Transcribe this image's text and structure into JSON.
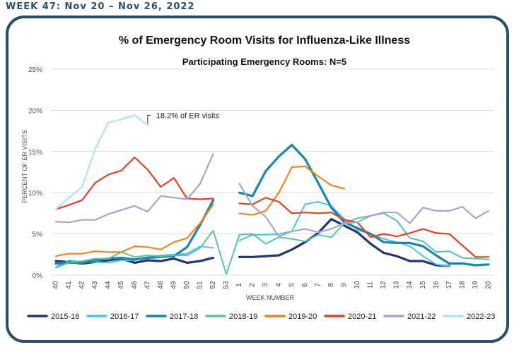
{
  "header": {
    "week_label": "WEEK 47: Nov 20 – Nov 26, 2022"
  },
  "chart_data": {
    "type": "line",
    "title": "% of Emergency Room Visits for Influenza-Like Illness",
    "subtitle": "Participating Emergency Rooms: N=5",
    "xlabel": "WEEK NUMBER",
    "ylabel": "PERCENT OF ER VISITS",
    "ylim": [
      0,
      25
    ],
    "yticks": [
      "0%",
      "5%",
      "10%",
      "15%",
      "20%",
      "25%"
    ],
    "categories": [
      "40",
      "41",
      "42",
      "43",
      "44",
      "45",
      "46",
      "47",
      "48",
      "49",
      "50",
      "51",
      "52",
      "53",
      "1",
      "2",
      "3",
      "4",
      "5",
      "6",
      "7",
      "8",
      "9",
      "10",
      "11",
      "12",
      "13",
      "14",
      "15",
      "16",
      "17",
      "18",
      "19",
      "20"
    ],
    "grid": true,
    "legend": "bottom",
    "annotation": {
      "text": "18.2% of ER visits",
      "category": "47",
      "value": 18.2
    },
    "series": [
      {
        "name": "2015-16",
        "color": "#26346e",
        "width": 3.2,
        "values": [
          1.7,
          1.6,
          1.4,
          1.6,
          1.8,
          2.0,
          1.5,
          1.8,
          1.7,
          2.0,
          1.5,
          1.7,
          2.1,
          null,
          2.2,
          2.2,
          2.3,
          2.4,
          3.1,
          4.0,
          5.1,
          6.8,
          6.0,
          5.2,
          3.8,
          2.7,
          2.3,
          1.7,
          1.7,
          1.2,
          1.1,
          null,
          null,
          null
        ]
      },
      {
        "name": "2016-17",
        "color": "#4dc3e8",
        "width": 2,
        "values": [
          1.0,
          1.8,
          1.6,
          1.6,
          1.5,
          1.8,
          1.8,
          2.2,
          2.4,
          2.5,
          2.6,
          3.5,
          3.3,
          null,
          4.2,
          4.9,
          4.9,
          5.0,
          5.3,
          8.6,
          8.9,
          8.4,
          6.8,
          5.5,
          5.0,
          4.4,
          4.0,
          3.5,
          2.3,
          1.3,
          1.1,
          null,
          null,
          null
        ]
      },
      {
        "name": "2017-18",
        "color": "#1b86a8",
        "width": 3.2,
        "values": [
          1.4,
          1.5,
          1.5,
          1.8,
          2.0,
          2.1,
          1.9,
          2.1,
          2.2,
          2.3,
          3.4,
          6.1,
          9.1,
          null,
          10.0,
          9.6,
          12.6,
          14.4,
          15.8,
          14.1,
          11.2,
          8.2,
          6.4,
          5.7,
          5.0,
          4.0,
          3.9,
          3.9,
          3.5,
          2.4,
          1.4,
          1.4,
          1.2,
          1.3
        ]
      },
      {
        "name": "2018-19",
        "color": "#5bc3a2",
        "width": 2,
        "values": [
          0.9,
          1.5,
          1.7,
          2.0,
          2.0,
          2.8,
          2.2,
          2.4,
          2.3,
          2.4,
          2.4,
          3.3,
          5.4,
          0.1,
          4.9,
          5.0,
          3.8,
          4.6,
          4.4,
          4.1,
          4.9,
          4.6,
          6.3,
          6.9,
          7.2,
          7.5,
          6.6,
          4.5,
          4.1,
          2.8,
          2.9,
          2.1,
          2.0,
          1.9
        ]
      },
      {
        "name": "2019-20",
        "color": "#ef8327",
        "width": 2.2,
        "values": [
          2.3,
          2.6,
          2.6,
          2.9,
          2.8,
          2.8,
          3.5,
          3.4,
          3.1,
          4.0,
          4.5,
          6.3,
          8.6,
          null,
          7.5,
          7.3,
          7.8,
          10.0,
          13.1,
          13.2,
          12.0,
          10.9,
          10.5,
          null,
          null,
          null,
          null,
          null,
          null,
          null,
          null,
          null,
          null,
          null
        ]
      },
      {
        "name": "2020-21",
        "color": "#d9452c",
        "width": 2.2,
        "values": [
          8.0,
          8.5,
          9.1,
          11.2,
          12.2,
          12.7,
          14.3,
          12.8,
          10.7,
          11.8,
          9.3,
          9.2,
          9.3,
          null,
          8.7,
          8.6,
          9.4,
          8.9,
          7.5,
          7.6,
          7.5,
          7.6,
          6.7,
          6.4,
          4.6,
          5.0,
          4.7,
          5.1,
          5.6,
          5.1,
          5.0,
          3.6,
          2.2,
          2.2
        ]
      },
      {
        "name": "2021-22",
        "color": "#a8a4cf",
        "width": 2.2,
        "values": [
          6.5,
          6.4,
          6.7,
          6.7,
          7.4,
          7.9,
          8.4,
          7.7,
          9.6,
          9.4,
          9.2,
          11.1,
          14.7,
          null,
          11.1,
          8.4,
          7.1,
          4.7,
          5.3,
          5.6,
          5.2,
          5.6,
          6.3,
          6.4,
          7.2,
          7.6,
          7.6,
          6.3,
          8.2,
          7.8,
          7.8,
          8.3,
          6.9,
          7.8
        ]
      },
      {
        "name": "2022-23",
        "color": "#b3e2f3",
        "width": 2.2,
        "values": [
          8.0,
          9.4,
          10.7,
          15.3,
          18.5,
          18.9,
          19.4,
          18.2,
          null,
          null,
          null,
          null,
          null,
          null,
          null,
          null,
          null,
          null,
          null,
          null,
          null,
          null,
          null,
          null,
          null,
          null,
          null,
          null,
          null,
          null,
          null,
          null,
          null,
          null
        ]
      }
    ]
  }
}
